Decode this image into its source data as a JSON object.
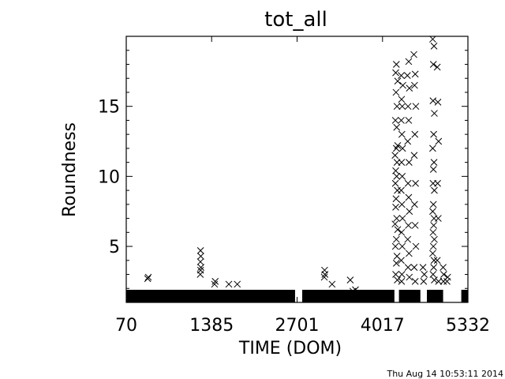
{
  "chart_data": {
    "type": "scatter",
    "title": "tot_all",
    "xlabel": "TIME (DOM)",
    "ylabel": "Roundness",
    "xlim": [
      70,
      5332
    ],
    "ylim": [
      1,
      20
    ],
    "x_ticks": [
      "70",
      "1385",
      "2701",
      "4017",
      "5332"
    ],
    "y_ticks": [
      "5",
      "10",
      "15"
    ],
    "marker": "x",
    "color": "#000000",
    "grid": false,
    "series": [
      {
        "points": [
          [
            400,
            2.7
          ],
          [
            410,
            2.8
          ],
          [
            1210,
            3.0
          ],
          [
            1215,
            3.3
          ],
          [
            1220,
            3.5
          ],
          [
            1212,
            3.9
          ],
          [
            1218,
            4.3
          ],
          [
            1214,
            4.7
          ],
          [
            1430,
            2.3
          ],
          [
            1440,
            2.5
          ],
          [
            1650,
            2.3
          ],
          [
            1780,
            2.3
          ],
          [
            3120,
            2.8
          ],
          [
            3130,
            3.0
          ],
          [
            3125,
            3.3
          ],
          [
            3240,
            2.3
          ],
          [
            3520,
            2.6
          ],
          [
            3560,
            1.8
          ],
          [
            3600,
            1.9
          ],
          [
            4230,
            12.0
          ],
          [
            4250,
            12.2
          ],
          [
            4210,
            11.5
          ],
          [
            4240,
            11.0
          ],
          [
            4220,
            10.4
          ],
          [
            4235,
            10.0
          ],
          [
            4215,
            9.5
          ],
          [
            4245,
            9.0
          ],
          [
            4225,
            8.4
          ],
          [
            4220,
            7.8
          ],
          [
            4235,
            7.0
          ],
          [
            4210,
            6.6
          ],
          [
            4250,
            6.2
          ],
          [
            4230,
            5.5
          ],
          [
            4215,
            5.0
          ],
          [
            4240,
            4.3
          ],
          [
            4230,
            3.8
          ],
          [
            4220,
            3.0
          ],
          [
            4245,
            2.6
          ],
          [
            4235,
            13.5
          ],
          [
            4215,
            14.0
          ],
          [
            4240,
            15.0
          ],
          [
            4225,
            16.0
          ],
          [
            4250,
            16.8
          ],
          [
            4220,
            17.4
          ],
          [
            4230,
            18.0
          ],
          [
            4310,
            15.5
          ],
          [
            4320,
            15.0
          ],
          [
            4305,
            14.0
          ],
          [
            4315,
            13.0
          ],
          [
            4325,
            12.0
          ],
          [
            4310,
            11.0
          ],
          [
            4320,
            10.0
          ],
          [
            4305,
            9.0
          ],
          [
            4315,
            8.0
          ],
          [
            4325,
            7.0
          ],
          [
            4310,
            6.0
          ],
          [
            4320,
            5.0
          ],
          [
            4305,
            4.0
          ],
          [
            4315,
            3.0
          ],
          [
            4310,
            2.5
          ],
          [
            4330,
            16.5
          ],
          [
            4305,
            17.2
          ],
          [
            4420,
            18.2
          ],
          [
            4400,
            17.2
          ],
          [
            4430,
            16.3
          ],
          [
            4410,
            15.0
          ],
          [
            4420,
            14.0
          ],
          [
            4405,
            12.5
          ],
          [
            4425,
            11.0
          ],
          [
            4410,
            9.5
          ],
          [
            4420,
            8.5
          ],
          [
            4430,
            7.5
          ],
          [
            4415,
            6.5
          ],
          [
            4405,
            5.5
          ],
          [
            4425,
            4.5
          ],
          [
            4410,
            3.5
          ],
          [
            4430,
            2.8
          ],
          [
            4500,
            18.7
          ],
          [
            4520,
            17.3
          ],
          [
            4510,
            16.5
          ],
          [
            4530,
            15.0
          ],
          [
            4515,
            13.0
          ],
          [
            4505,
            11.5
          ],
          [
            4525,
            9.5
          ],
          [
            4510,
            8.0
          ],
          [
            4520,
            6.5
          ],
          [
            4530,
            5.0
          ],
          [
            4505,
            3.5
          ],
          [
            4520,
            2.5
          ],
          [
            4640,
            3.5
          ],
          [
            4660,
            3.0
          ],
          [
            4650,
            2.5
          ],
          [
            4790,
            19.8
          ],
          [
            4810,
            19.3
          ],
          [
            4800,
            18.0
          ],
          [
            4795,
            15.4
          ],
          [
            4815,
            14.5
          ],
          [
            4805,
            13.0
          ],
          [
            4790,
            12.0
          ],
          [
            4810,
            11.0
          ],
          [
            4800,
            10.5
          ],
          [
            4795,
            9.5
          ],
          [
            4815,
            9.0
          ],
          [
            4800,
            8.0
          ],
          [
            4790,
            7.5
          ],
          [
            4810,
            7.0
          ],
          [
            4805,
            6.5
          ],
          [
            4795,
            6.0
          ],
          [
            4815,
            5.5
          ],
          [
            4800,
            5.0
          ],
          [
            4790,
            4.5
          ],
          [
            4810,
            4.0
          ],
          [
            4805,
            3.5
          ],
          [
            4795,
            3.0
          ],
          [
            4815,
            2.6
          ],
          [
            4870,
            15.3
          ],
          [
            4860,
            17.8
          ],
          [
            4880,
            12.5
          ],
          [
            4865,
            9.5
          ],
          [
            4875,
            7.0
          ],
          [
            4860,
            4.0
          ],
          [
            4880,
            2.5
          ],
          [
            4950,
            3.5
          ],
          [
            4960,
            3.0
          ],
          [
            4955,
            2.5
          ],
          [
            5010,
            2.5
          ],
          [
            5020,
            2.8
          ]
        ],
        "baseline_band": {
          "segments": [
            [
              70,
              2670
            ],
            [
              2780,
              4200
            ],
            [
              4270,
              4600
            ],
            [
              4700,
              4950
            ],
            [
              5230,
              5332
            ]
          ],
          "y_range": [
            1.0,
            1.9
          ]
        }
      }
    ]
  },
  "footer_timestamp": "Thu Aug 14 10:53:11 2014"
}
